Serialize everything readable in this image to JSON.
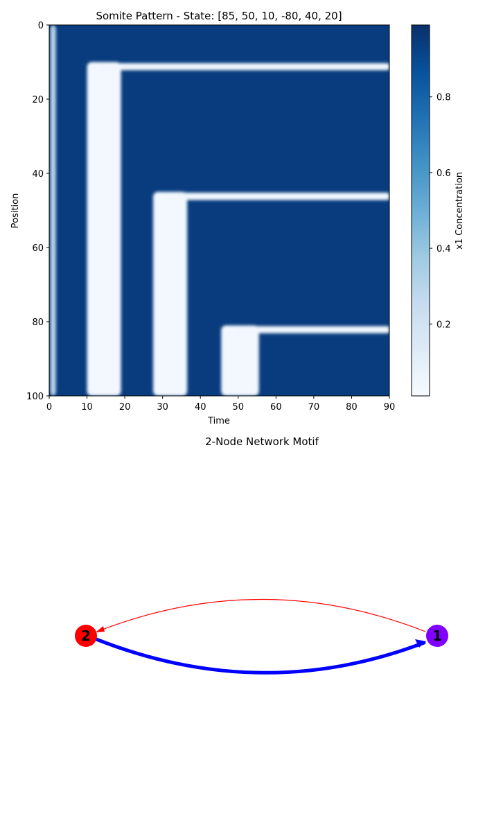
{
  "heatmap": {
    "title": "Somite Pattern - State: [85, 50, 10, -80, 40, 20]",
    "xlabel": "Time",
    "ylabel": "Position",
    "colorbar_label": "x1 Concentration"
  },
  "network": {
    "title": "2-Node Network Motif",
    "nodes": [
      {
        "id": "1",
        "label": "1",
        "color": "#8000ff"
      },
      {
        "id": "2",
        "label": "2",
        "color": "#ff0000"
      }
    ],
    "edges": [
      {
        "from": "1",
        "to": "2",
        "color": "#ff0000",
        "weight": "thin"
      },
      {
        "from": "2",
        "to": "1",
        "color": "#0000ff",
        "weight": "thick"
      }
    ]
  },
  "chart_data": [
    {
      "type": "heatmap",
      "title": "Somite Pattern - State: [85, 50, 10, -80, 40, 20]",
      "xlabel": "Time",
      "ylabel": "Position",
      "xlim": [
        0,
        90
      ],
      "ylim": [
        100,
        0
      ],
      "xticks": [
        0,
        10,
        20,
        30,
        40,
        50,
        60,
        70,
        80,
        90
      ],
      "yticks": [
        0,
        20,
        40,
        60,
        80,
        100
      ],
      "colormap": "Blues",
      "colorbar": {
        "label": "x1 Concentration",
        "ticks": [
          0.2,
          0.4,
          0.6,
          0.8
        ],
        "range": [
          0.01,
          0.99
        ]
      },
      "background_value": 0.95,
      "low_regions": [
        {
          "shape": "band",
          "time": [
            0.3,
            1.8
          ],
          "position": [
            0,
            100
          ],
          "value": 0.3
        },
        {
          "shape": "band",
          "time": [
            10,
            19
          ],
          "position": [
            10,
            100
          ],
          "value": 0.02
        },
        {
          "shape": "band",
          "time": [
            27.5,
            36.5
          ],
          "position": [
            45,
            100
          ],
          "value": 0.02
        },
        {
          "shape": "band",
          "time": [
            45.5,
            55.5
          ],
          "position": [
            81,
            100
          ],
          "value": 0.02
        },
        {
          "shape": "stripe",
          "time": [
            13,
            90
          ],
          "position": [
            10.3,
            12.2
          ],
          "value": 0.03
        },
        {
          "shape": "stripe",
          "time": [
            31,
            90
          ],
          "position": [
            45.2,
            47.2
          ],
          "value": 0.03
        },
        {
          "shape": "stripe",
          "time": [
            49,
            90
          ],
          "position": [
            81.2,
            83.1
          ],
          "value": 0.03
        }
      ]
    },
    {
      "type": "network",
      "title": "2-Node Network Motif",
      "nodes": [
        "1",
        "2"
      ],
      "edges": [
        {
          "from": "1",
          "to": "2",
          "color": "#ff0000",
          "weight": "thin"
        },
        {
          "from": "2",
          "to": "1",
          "color": "#0000ff",
          "weight": "thick"
        }
      ]
    }
  ]
}
